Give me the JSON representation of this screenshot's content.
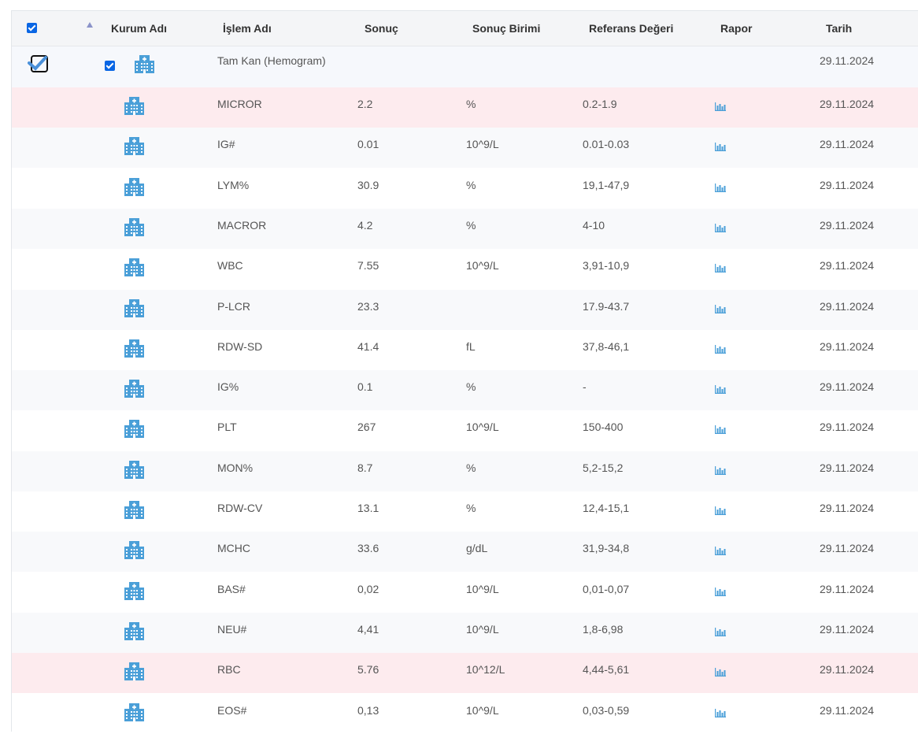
{
  "header": {
    "kurum_adi": "Kurum Adı",
    "islem_adi": "İşlem Adı",
    "sonuc": "Sonuç",
    "sonuc_birimi": "Sonuç Birimi",
    "referans_degeri": "Referans Değeri",
    "rapor": "Rapor",
    "tarih": "Tarih"
  },
  "group": {
    "name": "Tam Kan (Hemogram)",
    "date": "29.11.2024"
  },
  "rows": [
    {
      "name": "MICROR",
      "result": "2.2",
      "unit": "%",
      "ref": "0.2-1.9",
      "date": "29.11.2024",
      "status": "alert"
    },
    {
      "name": "IG#",
      "result": "0.01",
      "unit": "10^9/L",
      "ref": "0.01-0.03",
      "date": "29.11.2024",
      "status": "alt"
    },
    {
      "name": "LYM%",
      "result": "30.9",
      "unit": "%",
      "ref": "19,1-47,9",
      "date": "29.11.2024",
      "status": "white"
    },
    {
      "name": "MACROR",
      "result": "4.2",
      "unit": "%",
      "ref": "4-10",
      "date": "29.11.2024",
      "status": "alt"
    },
    {
      "name": "WBC",
      "result": "7.55",
      "unit": "10^9/L",
      "ref": "3,91-10,9",
      "date": "29.11.2024",
      "status": "white"
    },
    {
      "name": "P-LCR",
      "result": "23.3",
      "unit": "",
      "ref": "17.9-43.7",
      "date": "29.11.2024",
      "status": "alt"
    },
    {
      "name": "RDW-SD",
      "result": "41.4",
      "unit": "fL",
      "ref": "37,8-46,1",
      "date": "29.11.2024",
      "status": "white"
    },
    {
      "name": "IG%",
      "result": "0.1",
      "unit": "%",
      "ref": "-",
      "date": "29.11.2024",
      "status": "alt"
    },
    {
      "name": "PLT",
      "result": "267",
      "unit": "10^9/L",
      "ref": "150-400",
      "date": "29.11.2024",
      "status": "white"
    },
    {
      "name": "MON%",
      "result": "8.7",
      "unit": "%",
      "ref": "5,2-15,2",
      "date": "29.11.2024",
      "status": "alt"
    },
    {
      "name": "RDW-CV",
      "result": "13.1",
      "unit": "%",
      "ref": "12,4-15,1",
      "date": "29.11.2024",
      "status": "white"
    },
    {
      "name": "MCHC",
      "result": "33.6",
      "unit": "g/dL",
      "ref": "31,9-34,8",
      "date": "29.11.2024",
      "status": "alt"
    },
    {
      "name": "BAS#",
      "result": "0,02",
      "unit": "10^9/L",
      "ref": "0,01-0,07",
      "date": "29.11.2024",
      "status": "white"
    },
    {
      "name": "NEU#",
      "result": "4,41",
      "unit": "10^9/L",
      "ref": "1,8-6,98",
      "date": "29.11.2024",
      "status": "alt"
    },
    {
      "name": "RBC",
      "result": "5.76",
      "unit": "10^12/L",
      "ref": "4,44-5,61",
      "date": "29.11.2024",
      "status": "alert"
    },
    {
      "name": "EOS#",
      "result": "0,13",
      "unit": "10^9/L",
      "ref": "0,03-0,59",
      "date": "29.11.2024",
      "status": "white"
    }
  ],
  "icons": {
    "institution": "hospital-building-icon",
    "report": "bar-chart-icon",
    "sort": "sort-ascending-icon"
  },
  "colors": {
    "accent": "#4a9fd8",
    "alert_row": "#fdebee",
    "checkbox": "#0a66e4"
  }
}
